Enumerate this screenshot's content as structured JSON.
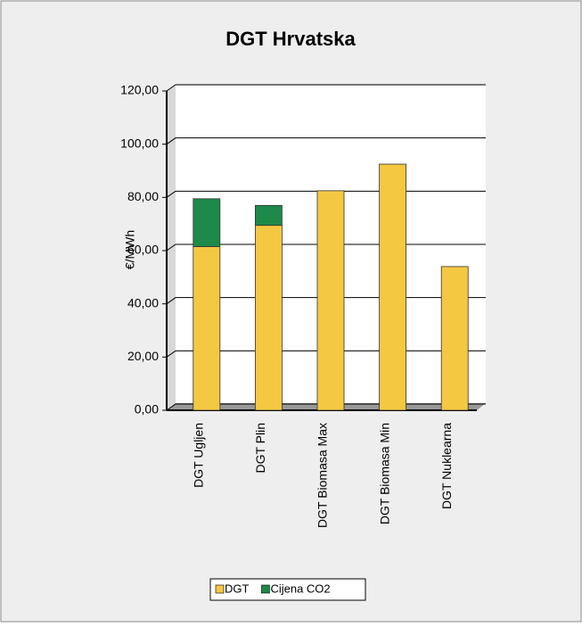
{
  "chart_data": {
    "type": "stacked_bar",
    "title": "DGT Hrvatska",
    "ylabel": "€/MWh",
    "categories": [
      "DGT Ugljen",
      "DGT Plin",
      "DGT Biomasa Max",
      "DGT Biomasa Min",
      "DGT Nuklearna"
    ],
    "series": [
      {
        "name": "DGT",
        "color": "#f5c842",
        "values": [
          61.5,
          69.5,
          82.5,
          92.5,
          54
        ]
      },
      {
        "name": "Cijena CO2",
        "color": "#1e8a4a",
        "values": [
          18,
          7.5,
          0,
          0,
          0
        ]
      }
    ],
    "ylim": [
      0,
      120
    ],
    "yticks": [
      {
        "value": 0,
        "label": "0,00"
      },
      {
        "value": 20,
        "label": "20,00"
      },
      {
        "value": 40,
        "label": "40,00"
      },
      {
        "value": 60,
        "label": "60,00"
      },
      {
        "value": 80,
        "label": "80,00"
      },
      {
        "value": 100,
        "label": "100,00"
      },
      {
        "value": 120,
        "label": "120,00"
      }
    ],
    "grid": true,
    "legend": "bottom"
  }
}
